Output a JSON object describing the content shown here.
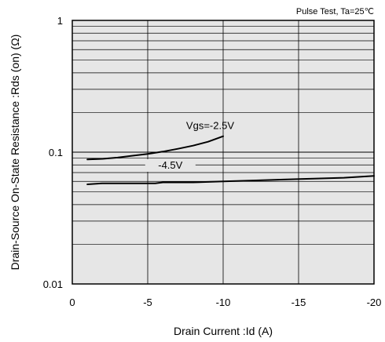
{
  "chart_data": {
    "type": "line",
    "title": "",
    "annotation": "Pulse Test, Ta=25℃",
    "xlabel": "Drain Current :Id  (A)",
    "ylabel": "Drain-Source On-State Resistance :Rds (on)  (Ω)",
    "xlim": [
      0,
      -20
    ],
    "ylim": [
      0.01,
      1
    ],
    "yscale": "log",
    "grid": true,
    "background": "#e6e6e6",
    "x_ticks": [
      {
        "value": 0,
        "label": "0"
      },
      {
        "value": -5,
        "label": "-5"
      },
      {
        "value": -10,
        "label": "-10"
      },
      {
        "value": -15,
        "label": "-15"
      },
      {
        "value": -20,
        "label": "-20"
      }
    ],
    "y_ticks": [
      {
        "value": 1,
        "label": "1"
      },
      {
        "value": 0.1,
        "label": "0.1"
      },
      {
        "value": 0.01,
        "label": "0.01"
      }
    ],
    "series": [
      {
        "name": "Vgs=-2.5V",
        "x": [
          -1,
          -2,
          -3,
          -4,
          -5,
          -6,
          -7,
          -8,
          -9,
          -10
        ],
        "y": [
          0.088,
          0.089,
          0.091,
          0.094,
          0.097,
          0.101,
          0.106,
          0.112,
          0.12,
          0.132
        ]
      },
      {
        "name": "-4.5V",
        "x": [
          -1,
          -2,
          -4,
          -5.5,
          -6,
          -8,
          -10,
          -12,
          -14,
          -16,
          -18,
          -20
        ],
        "y": [
          0.057,
          0.058,
          0.058,
          0.058,
          0.059,
          0.059,
          0.06,
          0.061,
          0.062,
          0.063,
          0.064,
          0.066
        ]
      }
    ]
  }
}
